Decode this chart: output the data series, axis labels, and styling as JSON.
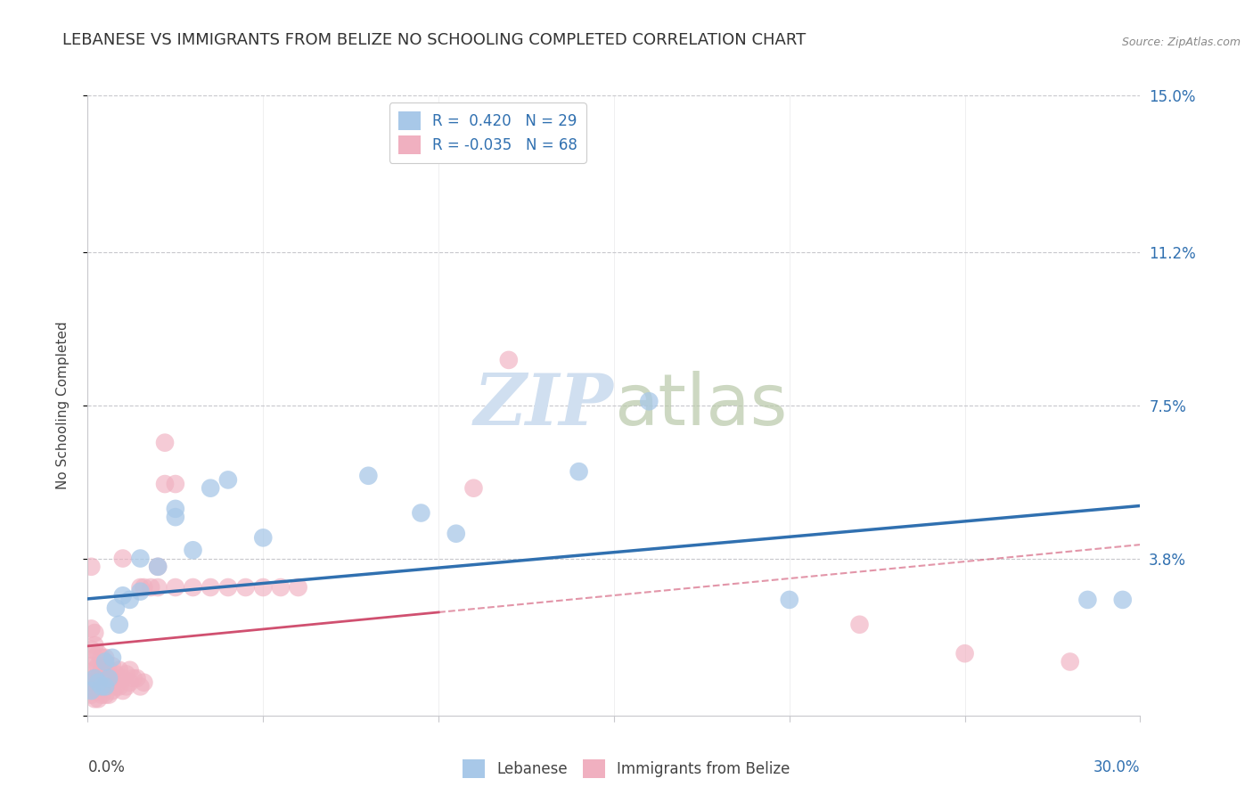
{
  "title": "LEBANESE VS IMMIGRANTS FROM BELIZE NO SCHOOLING COMPLETED CORRELATION CHART",
  "source": "Source: ZipAtlas.com",
  "ylabel": "No Schooling Completed",
  "xlim": [
    0.0,
    0.3
  ],
  "ylim": [
    0.0,
    0.15
  ],
  "ytick_right_values": [
    0.0,
    0.038,
    0.075,
    0.112,
    0.15
  ],
  "ytick_right_labels": [
    "",
    "3.8%",
    "7.5%",
    "11.2%",
    "15.0%"
  ],
  "legend_r": [
    0.42,
    -0.035
  ],
  "legend_n": [
    29,
    68
  ],
  "blue_color": "#a8c8e8",
  "pink_color": "#f0b0c0",
  "blue_line_color": "#3070b0",
  "pink_line_color": "#d05070",
  "watermark_color": "#d0dff0",
  "background_color": "#ffffff",
  "grid_color": "#c8c8cc",
  "title_fontsize": 13,
  "label_fontsize": 11,
  "tick_fontsize": 12,
  "blue_scatter_x": [
    0.001,
    0.002,
    0.003,
    0.004,
    0.005,
    0.005,
    0.006,
    0.007,
    0.008,
    0.009,
    0.01,
    0.012,
    0.015,
    0.02,
    0.025,
    0.03,
    0.04,
    0.08,
    0.095,
    0.105,
    0.14,
    0.16,
    0.2,
    0.285,
    0.295,
    0.015,
    0.025,
    0.035,
    0.05
  ],
  "blue_scatter_y": [
    0.006,
    0.009,
    0.008,
    0.007,
    0.007,
    0.013,
    0.009,
    0.014,
    0.026,
    0.022,
    0.029,
    0.028,
    0.038,
    0.036,
    0.05,
    0.04,
    0.057,
    0.058,
    0.049,
    0.044,
    0.059,
    0.076,
    0.028,
    0.028,
    0.028,
    0.03,
    0.048,
    0.055,
    0.043
  ],
  "pink_scatter_x": [
    0.001,
    0.001,
    0.001,
    0.001,
    0.001,
    0.002,
    0.002,
    0.002,
    0.002,
    0.002,
    0.002,
    0.003,
    0.003,
    0.003,
    0.003,
    0.003,
    0.004,
    0.004,
    0.004,
    0.004,
    0.005,
    0.005,
    0.005,
    0.005,
    0.006,
    0.006,
    0.006,
    0.007,
    0.007,
    0.007,
    0.008,
    0.008,
    0.009,
    0.009,
    0.01,
    0.01,
    0.01,
    0.011,
    0.011,
    0.012,
    0.012,
    0.013,
    0.014,
    0.015,
    0.015,
    0.016,
    0.016,
    0.018,
    0.02,
    0.02,
    0.022,
    0.022,
    0.025,
    0.025,
    0.03,
    0.035,
    0.04,
    0.045,
    0.05,
    0.055,
    0.06,
    0.12,
    0.22,
    0.25,
    0.001,
    0.002,
    0.28,
    0.11
  ],
  "pink_scatter_y": [
    0.005,
    0.008,
    0.012,
    0.016,
    0.021,
    0.004,
    0.006,
    0.009,
    0.011,
    0.014,
    0.017,
    0.004,
    0.006,
    0.009,
    0.012,
    0.015,
    0.005,
    0.008,
    0.011,
    0.014,
    0.005,
    0.008,
    0.011,
    0.014,
    0.005,
    0.008,
    0.011,
    0.006,
    0.009,
    0.012,
    0.007,
    0.01,
    0.007,
    0.011,
    0.006,
    0.009,
    0.038,
    0.007,
    0.01,
    0.008,
    0.011,
    0.009,
    0.009,
    0.007,
    0.031,
    0.008,
    0.031,
    0.031,
    0.031,
    0.036,
    0.056,
    0.066,
    0.031,
    0.056,
    0.031,
    0.031,
    0.031,
    0.031,
    0.031,
    0.031,
    0.031,
    0.086,
    0.022,
    0.015,
    0.036,
    0.02,
    0.013,
    0.055
  ]
}
